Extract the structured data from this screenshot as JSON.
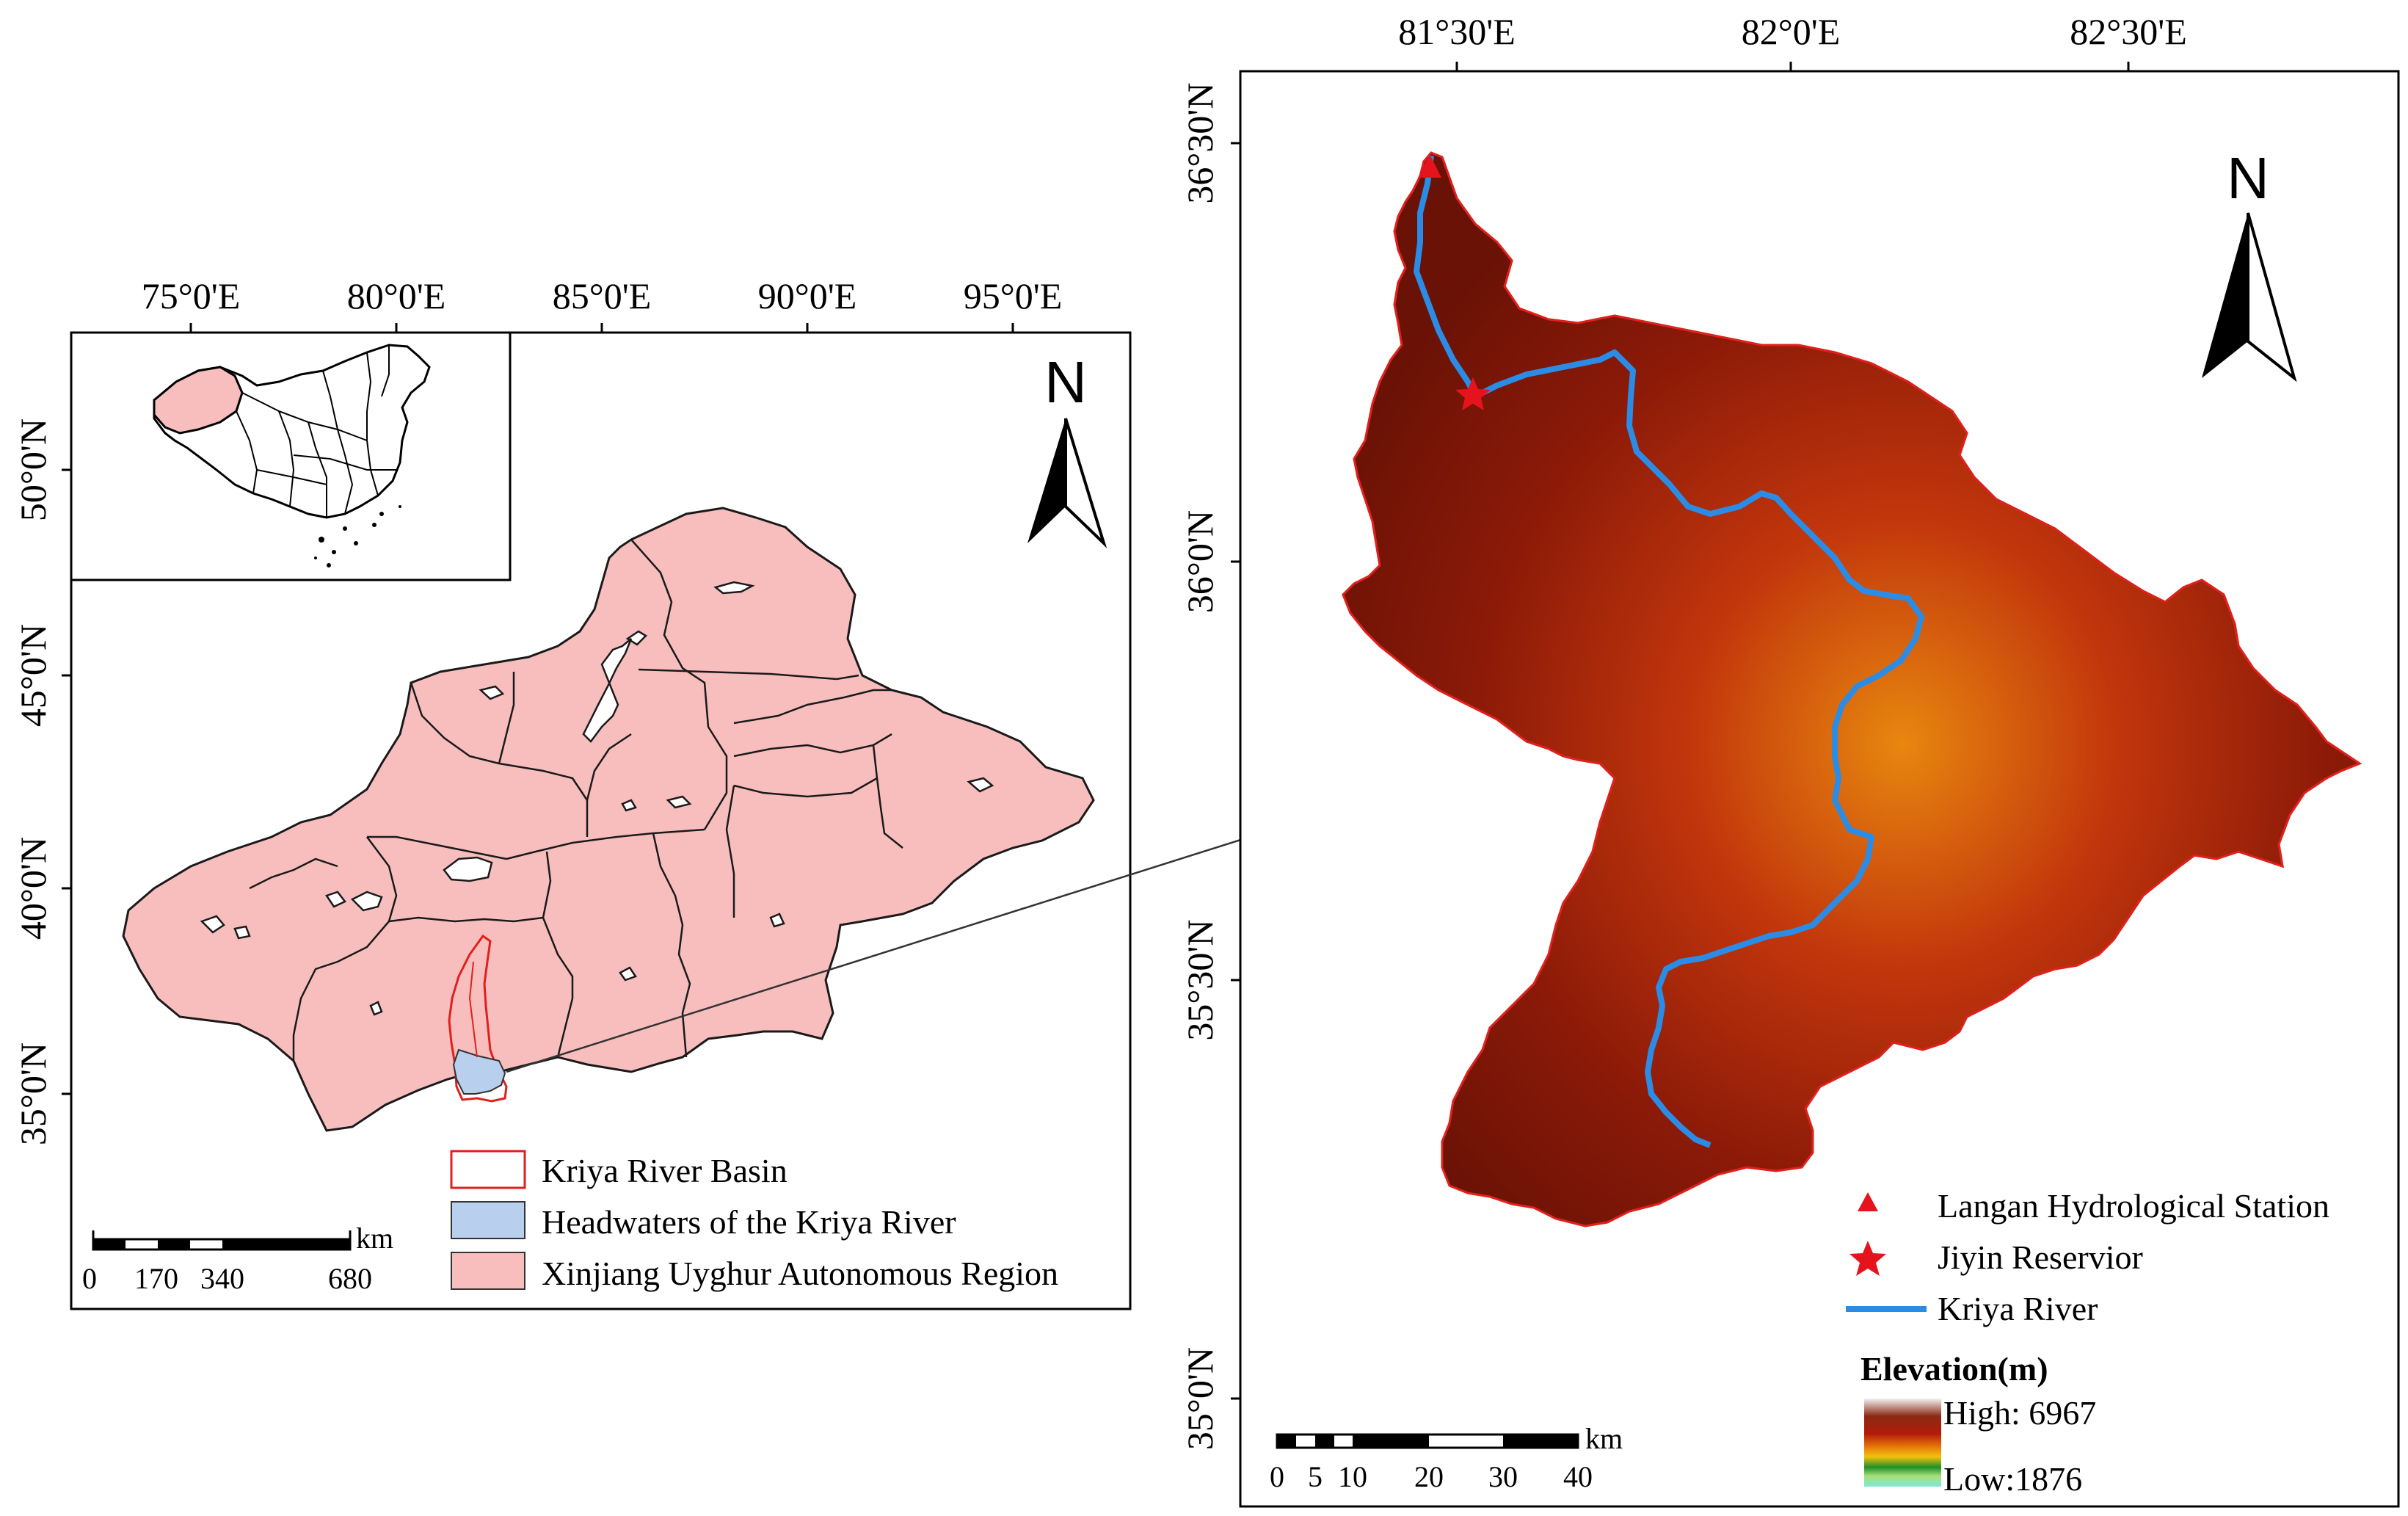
{
  "left_map": {
    "top_ticks": [
      "75°0'E",
      "80°0'E",
      "85°0'E",
      "90°0'E",
      "95°0'E"
    ],
    "left_ticks": [
      "50°0'N",
      "45°0'N",
      "40°0'N",
      "35°0'N"
    ],
    "north_label": "N",
    "legend": [
      {
        "label": "Kriya River Basin",
        "swatch_fill": "#ffffff",
        "swatch_stroke": "#e0201c"
      },
      {
        "label": "Headwaters of the Kriya River",
        "swatch_fill": "#b9cfee",
        "swatch_stroke": "#333333"
      },
      {
        "label": "Xinjiang  Uyghur Autonomous Region",
        "swatch_fill": "#f8bebe",
        "swatch_stroke": "#333333"
      }
    ],
    "scalebar": {
      "unit": "km",
      "labels": [
        "0",
        "170",
        "340",
        "680"
      ]
    },
    "region_fill": "#f8bebe",
    "basin_stroke": "#e0201c",
    "headwater_fill": "#b9cfee"
  },
  "right_map": {
    "top_ticks": [
      "81°30'E",
      "82°0'E",
      "82°30'E"
    ],
    "left_ticks": [
      "36°30'N",
      "36°0'N",
      "35°30'N",
      "35°0'N"
    ],
    "north_label": "N",
    "legend": [
      {
        "label": "Langan Hydrological Station",
        "icon": "triangle-icon",
        "color": "#e5141c"
      },
      {
        "label": "Jiyin Reservior",
        "icon": "star-icon",
        "color": "#e5141c"
      },
      {
        "label": "Kriya River",
        "icon": "line-icon",
        "color": "#2b8ce6"
      }
    ],
    "elevation": {
      "title": "Elevation(m)",
      "high_label": "High: 6967",
      "low_label": "Low:1876"
    },
    "scalebar": {
      "unit": "km",
      "labels": [
        "0",
        "5",
        "10",
        "20",
        "30",
        "40"
      ]
    },
    "river_color": "#2b8ce6",
    "marker_color": "#e5141c"
  }
}
